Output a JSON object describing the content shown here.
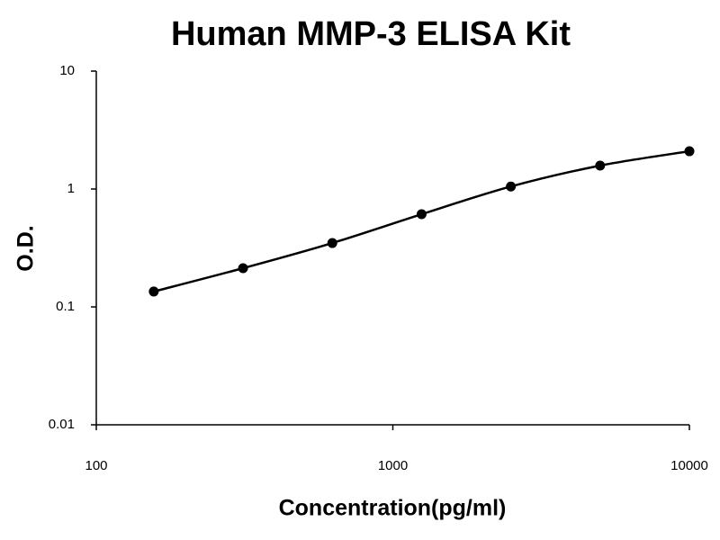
{
  "chart_data": {
    "type": "line",
    "title": "Human MMP-3 ELISA Kit",
    "x_label": "Concentration(pg/ml)",
    "y_label": "O.D.",
    "x": [
      156.25,
      312.5,
      625,
      1250,
      2500,
      5000,
      10000
    ],
    "series": [
      {
        "color": "#000000",
        "values": [
          0.135,
          0.213,
          0.348,
          0.611,
          1.05,
          1.58,
          2.09
        ]
      }
    ],
    "xscale": "log",
    "yscale": "log",
    "xlim": [
      100,
      10000
    ],
    "xticks": [
      100,
      1000,
      10000
    ],
    "ylim": [
      0.01,
      10
    ],
    "yticks": [
      0.01,
      0.1,
      1,
      10
    ],
    "grid": false
  }
}
